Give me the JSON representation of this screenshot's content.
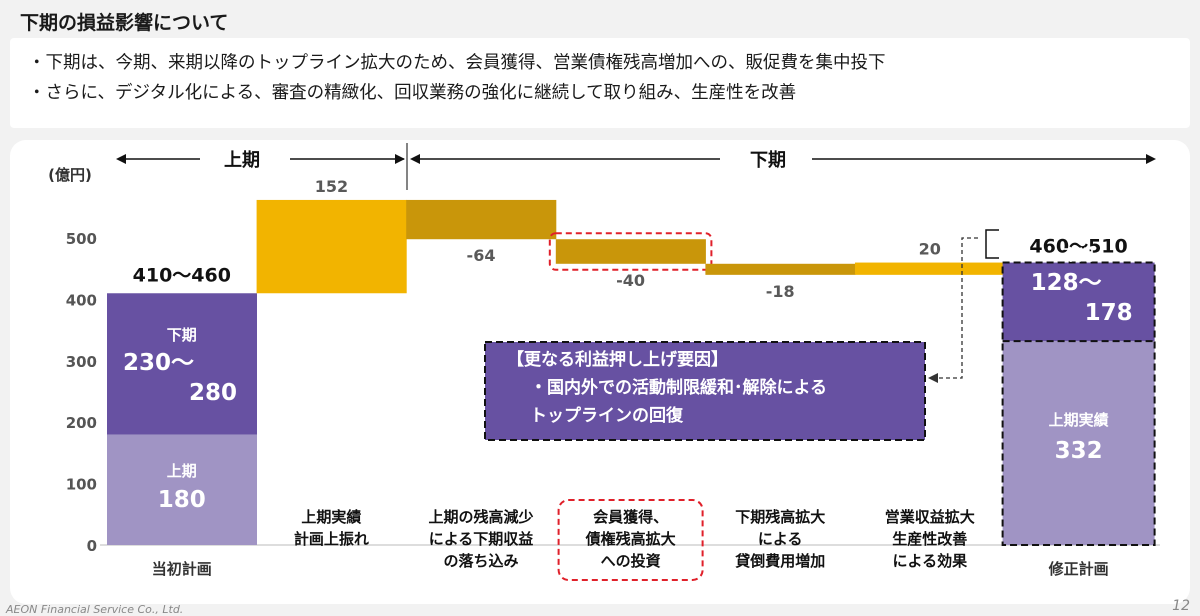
{
  "page": {
    "title": "下期の損益影響について",
    "bullets": [
      "・下期は、今期、来期以降のトップライン拡大のため、会員獲得、営業債権残高増加への、販促費を集中投下",
      "・さらに、デジタル化による、審査の精緻化、回収業務の強化に継続して取り組み、生産性を改善"
    ],
    "footer": "AEON Financial Service Co., Ltd.",
    "page_number": "12"
  },
  "chart_data": {
    "type": "bar",
    "subtype": "waterfall",
    "ylabel": "(億円)",
    "ylim": [
      0,
      600
    ],
    "yticks": [
      0,
      100,
      200,
      300,
      400,
      500
    ],
    "period_labels": {
      "first_half": "上期",
      "second_half": "下期"
    },
    "categories": [
      "当初計画",
      "上期実績\n計画上振れ",
      "上期の残高減少\nによる下期収益\nの落ち込み",
      "会員獲得、\n債権残高拡大\nへの投資",
      "下期残高拡大\nによる\n貸倒費用増加",
      "営業収益拡大\n生産性改善\nによる効果",
      "修正計画"
    ],
    "initial_plan": {
      "total_label": "410～460",
      "first_half": {
        "label": "上期",
        "value": 180,
        "value_label": "180"
      },
      "second_half": {
        "label": "下期",
        "value": 230,
        "value_label": "230～\n280"
      }
    },
    "changes": [
      {
        "value": 152,
        "label": "152"
      },
      {
        "value": -64,
        "label": "-64"
      },
      {
        "value": -40,
        "label": "-40",
        "highlight": true
      },
      {
        "value": -18,
        "label": "-18"
      },
      {
        "value": 20,
        "label": "20"
      }
    ],
    "revised_plan": {
      "total_label": "460～510",
      "first_half": {
        "label": "上期実績",
        "value": 332,
        "value_label": "332"
      },
      "second_half": {
        "label": "下期",
        "value": 128,
        "value_label": "128～\n178"
      }
    },
    "callout": [
      "【更なる利益押し上げ要因】",
      "・国内外での活動制限緩和･解除による",
      "　トップラインの回復"
    ],
    "colors": {
      "plan_first_half": "#a094c4",
      "plan_second_half": "#6751a2",
      "increase": "#f2b400",
      "decrease": "#c9960a",
      "highlight_border": "#e0202a",
      "callout_fill": "#6751a2"
    }
  }
}
